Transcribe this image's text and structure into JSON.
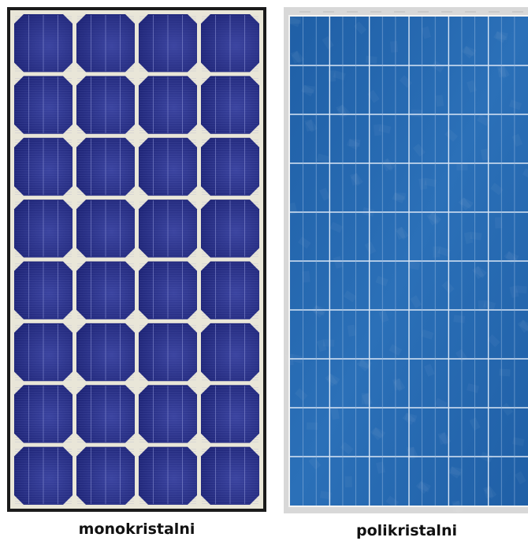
{
  "panels": {
    "mono": {
      "caption": "monokristalni",
      "colors": {
        "frame": "#1b1b1b",
        "backsheet": "#e9e6d8",
        "cell_dark": "#1c2273",
        "cell_light": "#3b44a0",
        "finger_line": "#6d76c4",
        "busbar": "#8c94d6"
      },
      "cell_columns": 4,
      "cell_rows": 8
    },
    "poly": {
      "caption": "polikristalni",
      "colors": {
        "frame": "#d8d8d8",
        "backsheet": "#f4f4f4",
        "cell": "#1f5fa6",
        "cell_light": "#2b70b8",
        "grid_line": "#d9e6f5",
        "busbar": "#8fb4dd"
      },
      "cell_columns": 6,
      "cell_rows": 10
    }
  }
}
